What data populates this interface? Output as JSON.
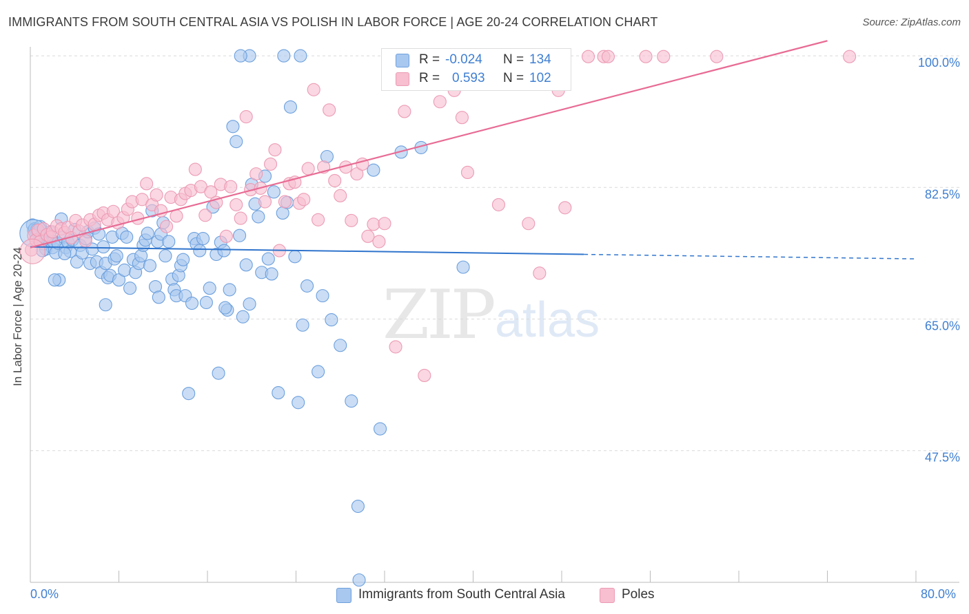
{
  "header": {
    "title": "IMMIGRANTS FROM SOUTH CENTRAL ASIA VS POLISH IN LABOR FORCE | AGE 20-24 CORRELATION CHART",
    "source": "Source: ZipAtlas.com"
  },
  "legend": {
    "row1": {
      "r_label": "R =",
      "r_value": "-0.024",
      "n_label": "N =",
      "n_value": "134"
    },
    "row2": {
      "r_label": "R =",
      "r_value": "0.593",
      "n_label": "N =",
      "n_value": "102"
    },
    "bottom": {
      "series1": "Immigrants from South Central Asia",
      "series2": "Poles"
    }
  },
  "watermark": {
    "zip": "ZIP",
    "atlas": "atlas"
  },
  "colors": {
    "blue_fill": "#a9c8ef",
    "blue_stroke": "#6b9fdd",
    "blue_line": "#2f74cc",
    "pink_fill": "#f7bfd0",
    "pink_stroke": "#ec9ab4",
    "pink_line": "#e86b94",
    "tick_text": "#3f7fd2",
    "grid": "#d9d9d9"
  },
  "chart_data": {
    "type": "scatter",
    "title": "IMMIGRANTS FROM SOUTH CENTRAL ASIA VS POLISH IN LABOR FORCE | AGE 20-24 CORRELATION CHART",
    "xlabel": "",
    "ylabel": "In Labor Force | Age 20-24",
    "xlim": [
      0,
      80
    ],
    "ylim": [
      30,
      102
    ],
    "x_tick_labels": [
      "0.0%",
      "80.0%"
    ],
    "y_ticks": [
      47.5,
      65.0,
      82.5,
      100.0
    ],
    "y_tick_labels": [
      "47.5%",
      "65.0%",
      "82.5%",
      "100.0%"
    ],
    "grid": true,
    "legend_position": "top-center",
    "series": [
      {
        "name": "Immigrants from South Central Asia",
        "r": -0.024,
        "n": 134,
        "trend": {
          "x0": 0,
          "y0": 74.6,
          "x1": 50,
          "y1": 73.6,
          "dashed_to_x": 80,
          "dashed_to_y": 73.0
        },
        "points": [
          [
            0.2,
            77.5
          ],
          [
            0.3,
            76.8
          ],
          [
            0.4,
            77.0
          ],
          [
            0.5,
            76.2
          ],
          [
            0.6,
            76.9
          ],
          [
            0.7,
            76.5
          ],
          [
            0.8,
            75.5
          ],
          [
            0.9,
            77.3
          ],
          [
            1.0,
            76.0
          ],
          [
            1.2,
            75.0
          ],
          [
            1.4,
            74.3
          ],
          [
            1.5,
            75.6
          ],
          [
            1.7,
            75.2
          ],
          [
            1.8,
            76.6
          ],
          [
            2.0,
            74.5
          ],
          [
            2.1,
            75.3
          ],
          [
            2.3,
            73.8
          ],
          [
            2.5,
            75.1
          ],
          [
            2.6,
            70.2
          ],
          [
            2.8,
            78.3
          ],
          [
            3.0,
            75.9
          ],
          [
            3.2,
            74.5
          ],
          [
            3.4,
            75.2
          ],
          [
            3.6,
            74.0
          ],
          [
            3.8,
            75.5
          ],
          [
            4.0,
            76.9
          ],
          [
            4.2,
            72.6
          ],
          [
            4.5,
            74.8
          ],
          [
            4.7,
            73.8
          ],
          [
            5.0,
            75.7
          ],
          [
            5.2,
            76.6
          ],
          [
            5.4,
            72.4
          ],
          [
            5.6,
            74.3
          ],
          [
            5.8,
            77.1
          ],
          [
            6.0,
            72.6
          ],
          [
            6.2,
            76.3
          ],
          [
            6.4,
            71.2
          ],
          [
            6.6,
            74.6
          ],
          [
            6.8,
            72.4
          ],
          [
            7.0,
            70.5
          ],
          [
            7.2,
            70.8
          ],
          [
            7.4,
            75.9
          ],
          [
            7.6,
            73.0
          ],
          [
            7.8,
            73.4
          ],
          [
            8.0,
            70.2
          ],
          [
            8.3,
            76.4
          ],
          [
            8.5,
            71.5
          ],
          [
            8.7,
            75.9
          ],
          [
            9.0,
            69.1
          ],
          [
            9.3,
            72.9
          ],
          [
            9.5,
            71.2
          ],
          [
            9.8,
            72.4
          ],
          [
            10.0,
            73.4
          ],
          [
            10.2,
            74.8
          ],
          [
            10.4,
            75.5
          ],
          [
            10.6,
            76.4
          ],
          [
            10.8,
            72.1
          ],
          [
            11.0,
            79.4
          ],
          [
            11.3,
            69.3
          ],
          [
            11.5,
            75.3
          ],
          [
            11.8,
            76.3
          ],
          [
            12.0,
            77.8
          ],
          [
            12.2,
            73.4
          ],
          [
            12.5,
            75.3
          ],
          [
            12.8,
            70.3
          ],
          [
            13.0,
            68.9
          ],
          [
            13.2,
            68.1
          ],
          [
            13.4,
            70.8
          ],
          [
            13.6,
            72.1
          ],
          [
            13.8,
            72.9
          ],
          [
            14.0,
            68.1
          ],
          [
            14.3,
            55.1
          ],
          [
            14.6,
            67.1
          ],
          [
            14.8,
            75.7
          ],
          [
            15.0,
            75.0
          ],
          [
            15.3,
            74.1
          ],
          [
            15.6,
            75.7
          ],
          [
            15.9,
            67.2
          ],
          [
            16.2,
            69.1
          ],
          [
            16.5,
            79.9
          ],
          [
            16.8,
            73.6
          ],
          [
            17.0,
            57.8
          ],
          [
            17.2,
            75.2
          ],
          [
            17.5,
            74.1
          ],
          [
            17.8,
            66.2
          ],
          [
            18.0,
            68.9
          ],
          [
            18.3,
            90.6
          ],
          [
            18.6,
            88.6
          ],
          [
            18.9,
            76.1
          ],
          [
            19.2,
            65.3
          ],
          [
            19.5,
            72.2
          ],
          [
            19.8,
            67.0
          ],
          [
            20.0,
            82.9
          ],
          [
            20.3,
            80.3
          ],
          [
            20.6,
            78.6
          ],
          [
            20.9,
            71.2
          ],
          [
            21.2,
            84.0
          ],
          [
            21.5,
            73.0
          ],
          [
            21.8,
            71.0
          ],
          [
            22.0,
            81.9
          ],
          [
            22.4,
            55.2
          ],
          [
            22.8,
            79.1
          ],
          [
            23.2,
            80.5
          ],
          [
            23.5,
            93.2
          ],
          [
            23.9,
            73.3
          ],
          [
            24.2,
            53.9
          ],
          [
            24.6,
            64.2
          ],
          [
            25.0,
            69.4
          ],
          [
            26.0,
            58.0
          ],
          [
            26.4,
            68.1
          ],
          [
            26.8,
            86.6
          ],
          [
            27.2,
            64.9
          ],
          [
            28.0,
            61.5
          ],
          [
            29.0,
            54.1
          ],
          [
            31.0,
            84.8
          ],
          [
            31.6,
            50.4
          ],
          [
            33.5,
            87.2
          ],
          [
            35.3,
            87.8
          ],
          [
            37.6,
            100.0
          ],
          [
            39.1,
            71.9
          ],
          [
            24.4,
            100.0
          ],
          [
            22.9,
            100.0
          ],
          [
            2.2,
            70.2
          ],
          [
            3.1,
            73.7
          ],
          [
            1.1,
            74.1
          ],
          [
            6.8,
            66.9
          ],
          [
            11.6,
            67.9
          ],
          [
            17.6,
            66.5
          ],
          [
            29.6,
            40.1
          ],
          [
            29.7,
            30.3
          ],
          [
            33.6,
            100.0
          ],
          [
            19.8,
            100.0
          ],
          [
            19.0,
            100.0
          ]
        ]
      },
      {
        "name": "Poles",
        "r": 0.593,
        "n": 102,
        "trend": {
          "x0": 0,
          "y0": 74.5,
          "x1": 72,
          "y1": 102.0
        },
        "points": [
          [
            0.1,
            74.2
          ],
          [
            0.3,
            76.1
          ],
          [
            0.5,
            75.5
          ],
          [
            0.7,
            76.8
          ],
          [
            0.9,
            75.3
          ],
          [
            1.2,
            77.0
          ],
          [
            1.5,
            76.2
          ],
          [
            1.8,
            75.9
          ],
          [
            2.0,
            76.6
          ],
          [
            2.4,
            77.4
          ],
          [
            2.8,
            77.0
          ],
          [
            3.1,
            76.5
          ],
          [
            3.4,
            77.2
          ],
          [
            3.7,
            75.8
          ],
          [
            4.1,
            78.1
          ],
          [
            4.4,
            76.7
          ],
          [
            4.7,
            77.5
          ],
          [
            5.0,
            75.4
          ],
          [
            5.4,
            78.2
          ],
          [
            5.8,
            77.6
          ],
          [
            6.2,
            78.8
          ],
          [
            6.6,
            79.1
          ],
          [
            7.0,
            78.2
          ],
          [
            7.5,
            79.3
          ],
          [
            7.9,
            77.8
          ],
          [
            8.4,
            78.5
          ],
          [
            8.8,
            79.6
          ],
          [
            9.2,
            80.6
          ],
          [
            9.7,
            78.4
          ],
          [
            10.1,
            80.9
          ],
          [
            10.5,
            83.0
          ],
          [
            11.0,
            80.2
          ],
          [
            11.4,
            81.5
          ],
          [
            11.8,
            79.4
          ],
          [
            12.3,
            77.3
          ],
          [
            12.7,
            81.2
          ],
          [
            13.2,
            78.7
          ],
          [
            13.6,
            80.9
          ],
          [
            14.0,
            81.7
          ],
          [
            14.5,
            82.1
          ],
          [
            14.9,
            84.9
          ],
          [
            15.4,
            82.6
          ],
          [
            15.8,
            78.8
          ],
          [
            16.3,
            81.9
          ],
          [
            16.8,
            80.5
          ],
          [
            17.2,
            82.9
          ],
          [
            17.7,
            76.0
          ],
          [
            18.1,
            82.6
          ],
          [
            18.6,
            80.2
          ],
          [
            19.0,
            78.4
          ],
          [
            19.5,
            91.9
          ],
          [
            19.9,
            82.2
          ],
          [
            20.4,
            84.3
          ],
          [
            20.8,
            82.4
          ],
          [
            21.2,
            80.6
          ],
          [
            21.7,
            85.6
          ],
          [
            22.1,
            87.5
          ],
          [
            22.5,
            74.1
          ],
          [
            23.0,
            80.6
          ],
          [
            23.4,
            83.0
          ],
          [
            23.9,
            83.2
          ],
          [
            24.3,
            80.4
          ],
          [
            24.7,
            80.9
          ],
          [
            25.1,
            85.0
          ],
          [
            25.6,
            95.5
          ],
          [
            26.0,
            78.2
          ],
          [
            26.5,
            85.2
          ],
          [
            27.0,
            92.8
          ],
          [
            27.5,
            83.4
          ],
          [
            28.0,
            81.4
          ],
          [
            28.5,
            85.2
          ],
          [
            29.0,
            78.1
          ],
          [
            29.5,
            84.3
          ],
          [
            30.0,
            85.6
          ],
          [
            30.5,
            76.0
          ],
          [
            31.0,
            77.6
          ],
          [
            31.5,
            75.3
          ],
          [
            32.0,
            77.7
          ],
          [
            32.5,
            96.3
          ],
          [
            33.0,
            61.3
          ],
          [
            33.8,
            92.6
          ],
          [
            34.0,
            99.9
          ],
          [
            35.6,
            57.5
          ],
          [
            36.2,
            99.9
          ],
          [
            37.0,
            93.9
          ],
          [
            37.7,
            99.9
          ],
          [
            38.3,
            95.4
          ],
          [
            39.0,
            91.8
          ],
          [
            39.5,
            84.5
          ],
          [
            40.1,
            99.9
          ],
          [
            41.0,
            99.9
          ],
          [
            42.3,
            80.2
          ],
          [
            45.0,
            77.7
          ],
          [
            46.0,
            71.1
          ],
          [
            47.7,
            95.4
          ],
          [
            48.3,
            79.8
          ],
          [
            50.4,
            99.9
          ],
          [
            51.8,
            99.9
          ],
          [
            52.2,
            99.9
          ],
          [
            55.6,
            99.9
          ],
          [
            57.2,
            99.9
          ],
          [
            62.0,
            99.9
          ],
          [
            74.0,
            99.9
          ]
        ]
      }
    ]
  }
}
